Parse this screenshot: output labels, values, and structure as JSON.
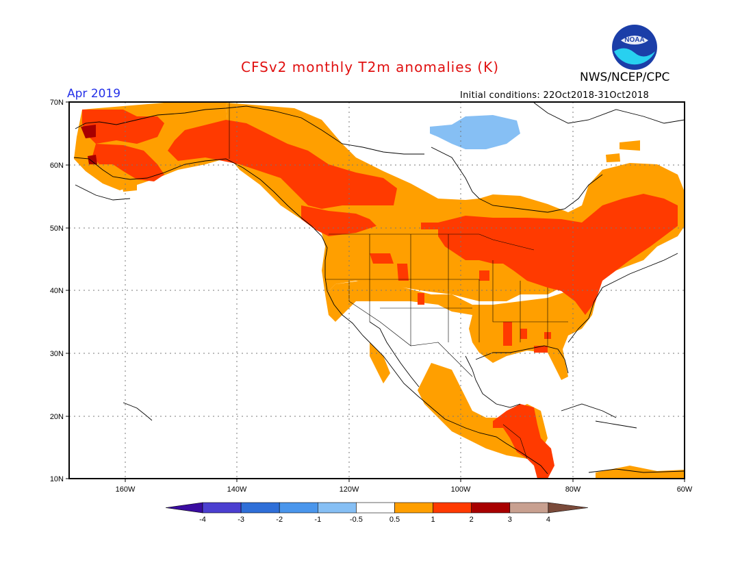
{
  "header": {
    "title": "CFSv2 monthly T2m anomalies (K)",
    "agency": "NWS/NCEP/CPC",
    "period": "Apr 2019",
    "initial_conditions": "Initial conditions: 22Oct2018-31Oct2018",
    "logo_text": "NOAA"
  },
  "axes": {
    "lat_labels": [
      "70N",
      "60N",
      "50N",
      "40N",
      "30N",
      "20N",
      "10N"
    ],
    "lon_labels": [
      "160W",
      "140W",
      "120W",
      "100W",
      "80W",
      "60W"
    ],
    "lat_range": [
      10,
      70
    ],
    "lon_range": [
      -170,
      -60
    ]
  },
  "colorbar": {
    "labels": [
      "-4",
      "-3",
      "-2",
      "-1",
      "-0.5",
      "0.5",
      "1",
      "2",
      "3",
      "4"
    ],
    "colors": [
      "#3a0ca0",
      "#4b3fd0",
      "#2f6fd8",
      "#4a96ec",
      "#86bff4",
      "#ffffff",
      "#ff9f00",
      "#ff3a00",
      "#a80000",
      "#c8a090",
      "#7a4a3a"
    ]
  },
  "anomaly_regions": [
    {
      "category": "0.5 to 1",
      "color": "#ff9f00",
      "region": "Alaska, Canada, CONUS north and east, Mexico, Central America"
    },
    {
      "category": "1 to 2",
      "color": "#ff3a00",
      "region": "Alaska west and south coast, western Canada, Great Lakes, Northeast US, eastern Canada, Central America"
    },
    {
      "category": "2 to 3",
      "color": "#a80000",
      "region": "Western Alaska coast"
    },
    {
      "category": "-1 to -0.5",
      "color": "#86bff4",
      "region": "Northern Canada / Arctic islands"
    }
  ]
}
